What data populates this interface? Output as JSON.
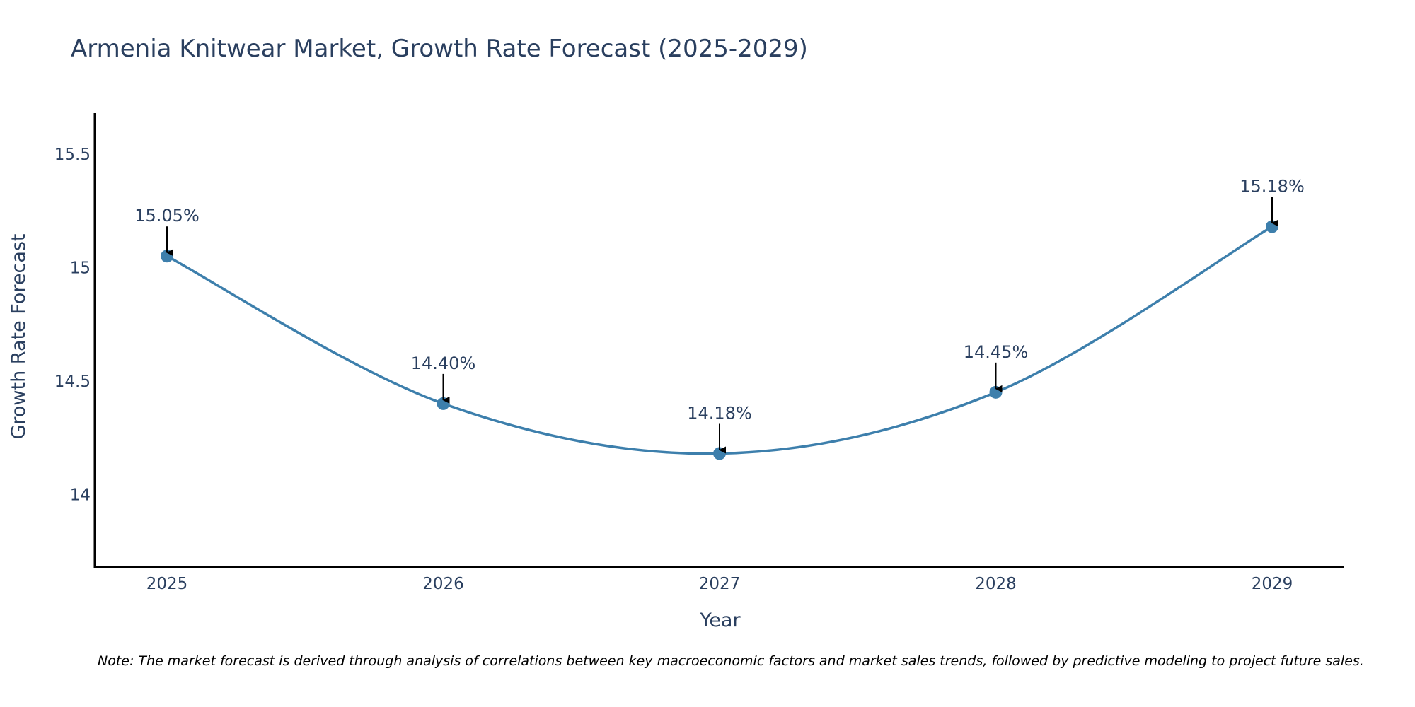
{
  "chart_data": {
    "type": "line",
    "title": "Armenia Knitwear Market, Growth Rate Forecast (2025-2029)",
    "xlabel": "Year",
    "ylabel": "Growth Rate Forecast",
    "categories": [
      "2025",
      "2026",
      "2027",
      "2028",
      "2029"
    ],
    "series": [
      {
        "name": "Growth Rate Forecast",
        "values": [
          15.05,
          14.4,
          14.18,
          14.45,
          15.18
        ],
        "labels": [
          "15.05%",
          "14.40%",
          "14.18%",
          "14.45%",
          "15.18%"
        ],
        "color": "#3d7fac"
      }
    ],
    "ylim": [
      13.68,
      15.68
    ],
    "yticks": [
      14,
      14.5,
      15,
      15.5
    ],
    "ytick_labels": [
      "14",
      "14.5",
      "15",
      "15.5"
    ],
    "grid": false,
    "line_shape": "spline",
    "annotation_arrows": true,
    "note": "Note: The market forecast is derived through analysis of correlations between key macroeconomic factors and market sales trends, followed by predictive modeling to project future sales."
  }
}
